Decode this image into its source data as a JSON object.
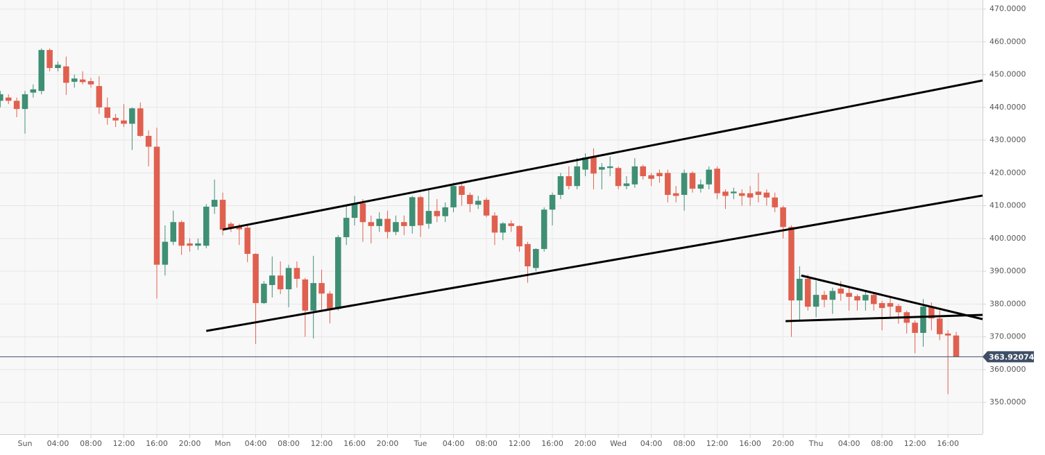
{
  "chart_data": {
    "type": "candlestick",
    "up_color": "#3f8f74",
    "down_color": "#e0604f",
    "grid": true,
    "xlim": [
      -3.03,
      116.2
    ],
    "ylim": [
      340.3,
      472.75
    ],
    "xticks": [
      {
        "value": 0,
        "label": "Sun"
      },
      {
        "value": 4,
        "label": "04:00"
      },
      {
        "value": 8,
        "label": "08:00"
      },
      {
        "value": 12,
        "label": "12:00"
      },
      {
        "value": 16,
        "label": "16:00"
      },
      {
        "value": 20,
        "label": "20:00"
      },
      {
        "value": 24,
        "label": "Mon"
      },
      {
        "value": 28,
        "label": "04:00"
      },
      {
        "value": 32,
        "label": "08:00"
      },
      {
        "value": 36,
        "label": "12:00"
      },
      {
        "value": 40,
        "label": "16:00"
      },
      {
        "value": 44,
        "label": "20:00"
      },
      {
        "value": 48,
        "label": "Tue"
      },
      {
        "value": 52,
        "label": "04:00"
      },
      {
        "value": 56,
        "label": "08:00"
      },
      {
        "value": 60,
        "label": "12:00"
      },
      {
        "value": 64,
        "label": "16:00"
      },
      {
        "value": 68,
        "label": "20:00"
      },
      {
        "value": 72,
        "label": "Wed"
      },
      {
        "value": 76,
        "label": "04:00"
      },
      {
        "value": 80,
        "label": "08:00"
      },
      {
        "value": 84,
        "label": "12:00"
      },
      {
        "value": 88,
        "label": "16:00"
      },
      {
        "value": 92,
        "label": "20:00"
      },
      {
        "value": 96,
        "label": "Thu"
      },
      {
        "value": 100,
        "label": "04:00"
      },
      {
        "value": 104,
        "label": "08:00"
      },
      {
        "value": 108,
        "label": "12:00"
      },
      {
        "value": 112,
        "label": "16:00"
      }
    ],
    "yticks": [
      {
        "value": 350,
        "label": "350.0000"
      },
      {
        "value": 360,
        "label": "360.0000"
      },
      {
        "value": 370,
        "label": "370.0000"
      },
      {
        "value": 380,
        "label": "380.0000"
      },
      {
        "value": 390,
        "label": "390.0000"
      },
      {
        "value": 400,
        "label": "400.0000"
      },
      {
        "value": 410,
        "label": "410.0000"
      },
      {
        "value": 420,
        "label": "420.0000"
      },
      {
        "value": 430,
        "label": "430.0000"
      },
      {
        "value": 440,
        "label": "440.0000"
      },
      {
        "value": 450,
        "label": "450.0000"
      },
      {
        "value": 460,
        "label": "460.0000"
      },
      {
        "value": 470,
        "label": "470.0000"
      }
    ],
    "last_price": 363.92074,
    "last_price_color": "#3e4e66",
    "trendline_color": "#000000",
    "trendlines": [
      {
        "x": [
          24,
          116.2
        ],
        "y": [
          402.7,
          448.2
        ]
      },
      {
        "x": [
          22,
          116.2
        ],
        "y": [
          371.8,
          413.1
        ]
      },
      {
        "x": [
          94.2,
          116.2
        ],
        "y": [
          388.7,
          375.4
        ]
      },
      {
        "x": [
          92.3,
          116.2
        ],
        "y": [
          374.8,
          376.7
        ]
      }
    ],
    "x": [
      -3,
      -2,
      -1,
      0,
      1,
      2,
      3,
      4,
      5,
      6,
      7,
      8,
      9,
      10,
      11,
      12,
      13,
      14,
      15,
      16,
      17,
      18,
      19,
      20,
      21,
      22,
      23,
      24,
      25,
      26,
      27,
      28,
      29,
      30,
      31,
      32,
      33,
      34,
      35,
      36,
      37,
      38,
      39,
      40,
      41,
      42,
      43,
      44,
      45,
      46,
      47,
      48,
      49,
      50,
      51,
      52,
      53,
      54,
      55,
      56,
      57,
      58,
      59,
      60,
      61,
      62,
      63,
      64,
      65,
      66,
      67,
      68,
      69,
      70,
      71,
      72,
      73,
      74,
      75,
      76,
      77,
      78,
      79,
      80,
      81,
      82,
      83,
      84,
      85,
      86,
      87,
      88,
      89,
      90,
      91,
      92,
      93,
      94,
      95,
      96,
      97,
      98,
      99,
      100,
      101,
      102,
      103,
      104,
      105,
      106,
      107,
      108,
      109,
      110,
      111,
      112,
      113
    ],
    "open": [
      442,
      443,
      442,
      439.5,
      444.5,
      445,
      457.5,
      452,
      452.5,
      447.8,
      448.5,
      448,
      446.5,
      440,
      436.8,
      436,
      435,
      439.7,
      431.3,
      428,
      392,
      399,
      405,
      398.5,
      397.8,
      397.8,
      409.7,
      411.8,
      404.5,
      403.5,
      403.3,
      395.3,
      380.3,
      385.8,
      388.7,
      384.5,
      391,
      387.5,
      378,
      386.4,
      383.2,
      378.5,
      400.4,
      406.3,
      410.7,
      405,
      403.8,
      406,
      402,
      405,
      403.8,
      412.6,
      404.5,
      408.4,
      406.8,
      409.5,
      416,
      413.3,
      410.3,
      411.8,
      407,
      401.8,
      404.6,
      403.8,
      398.3,
      391,
      396.8,
      408.8,
      413.3,
      419,
      416,
      421,
      424.7,
      421,
      421.5,
      421.5,
      416,
      416.5,
      422,
      419.3,
      420,
      420,
      413.8,
      413.3,
      420,
      415.2,
      416.5,
      421.3,
      414.3,
      413.8,
      413.8,
      413.8,
      414.3,
      414,
      412.5,
      409.5,
      403.5,
      381.1,
      387.7,
      379.2,
      382.8,
      381.3,
      384.7,
      383.4,
      382.4,
      381.1,
      382.8,
      380.3,
      380.3,
      379.4,
      377.5,
      374.3,
      371.2,
      379,
      375.6,
      371,
      370.4
    ],
    "high": [
      445,
      444,
      443,
      445,
      447,
      458,
      458,
      454,
      455.5,
      450,
      451,
      449,
      449.5,
      443,
      438,
      441,
      440,
      441.5,
      433,
      433.8,
      404,
      408.5,
      405.5,
      400,
      400,
      410.5,
      418,
      414,
      405,
      404.5,
      404,
      395.5,
      387,
      394.5,
      393,
      392,
      393,
      388,
      394.7,
      390.5,
      384,
      401,
      410,
      413,
      412,
      407,
      408,
      408.5,
      407,
      407,
      413,
      413,
      415,
      412,
      411,
      417,
      417,
      414,
      413,
      412.5,
      408,
      405,
      405.5,
      404,
      399,
      397,
      409.5,
      414,
      420,
      422,
      424.5,
      426,
      427.5,
      423,
      425,
      422,
      419,
      424.5,
      422.5,
      420,
      421,
      421,
      416,
      421,
      420.5,
      418,
      422,
      422,
      415,
      415.5,
      415,
      416,
      420,
      415,
      414,
      410,
      404,
      391.5,
      389,
      387,
      384,
      385,
      387,
      385,
      383,
      384,
      383.5,
      381,
      382,
      380,
      378,
      375,
      381.5,
      380.5,
      378,
      372,
      371.5
    ],
    "low": [
      440,
      441,
      437,
      432,
      443,
      444,
      451,
      451,
      443.8,
      446,
      447,
      446,
      438,
      434.7,
      434,
      434,
      427,
      431,
      422,
      381.7,
      388.7,
      398,
      395,
      396,
      396.5,
      397,
      407.5,
      401,
      402,
      398,
      392.8,
      367.8,
      380,
      382,
      383,
      379,
      385,
      370,
      369.5,
      378,
      374.1,
      378,
      398,
      404,
      399,
      398.5,
      402,
      400,
      401,
      401,
      401.5,
      400.5,
      403,
      405,
      405,
      408,
      410,
      408,
      409,
      406.5,
      398,
      399.5,
      402,
      396,
      386.5,
      390,
      396,
      404,
      412,
      415,
      415,
      419,
      415,
      415,
      419,
      415,
      415,
      415.5,
      418,
      416,
      417,
      411,
      411,
      408.5,
      414,
      414,
      415,
      412,
      409,
      412,
      410,
      410,
      411,
      410,
      408,
      400,
      370,
      375,
      378,
      376,
      379,
      377,
      381,
      378,
      378,
      378,
      378,
      372,
      376,
      374,
      371,
      365,
      367,
      372,
      369,
      352.5,
      363.9
    ],
    "close": [
      444,
      442,
      439.5,
      444,
      445.5,
      457.5,
      452,
      453,
      447.5,
      448.8,
      447.7,
      447,
      440,
      436.8,
      436,
      435,
      439.7,
      431.3,
      428,
      392,
      399,
      405,
      397.8,
      397.8,
      398.5,
      409.7,
      411.8,
      402.7,
      403,
      402.8,
      395.3,
      380.3,
      386.2,
      388.7,
      384.5,
      391,
      387.7,
      378,
      386.4,
      383.2,
      378.5,
      400.4,
      406.3,
      410.7,
      405,
      403.8,
      406,
      402,
      405,
      403.8,
      412.6,
      404,
      408.4,
      406.8,
      409.5,
      416,
      413.3,
      410.5,
      411.5,
      407,
      401.8,
      404.6,
      403.8,
      397.6,
      391.5,
      396.8,
      408.8,
      413.3,
      419,
      416,
      422,
      424.7,
      419.8,
      421.8,
      422,
      416,
      416.8,
      422,
      419,
      418.2,
      419,
      413.3,
      413,
      420,
      415.2,
      416.5,
      421,
      413.8,
      413,
      414.3,
      413,
      412.5,
      413.3,
      412.5,
      409.5,
      403.5,
      381.1,
      387.7,
      379.2,
      382.8,
      381.3,
      384,
      383.2,
      382.2,
      381.1,
      382.8,
      380,
      378.8,
      379.2,
      377.5,
      374.3,
      371.2,
      379.2,
      375.6,
      370.8,
      370.4,
      363.9
    ]
  }
}
